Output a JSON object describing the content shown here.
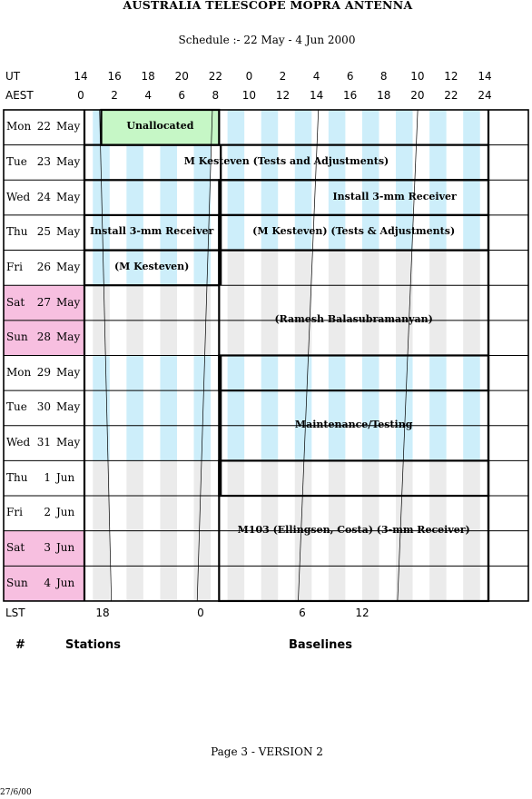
{
  "header": {
    "title": "AUSTRALIA TELESCOPE MOPRA ANTENNA",
    "subtitle": "Schedule :- 22 May - 4 Jun 2000"
  },
  "axes": {
    "ut_label": "UT",
    "aest_label": "AEST",
    "lst_label": "LST",
    "ut_ticks": [
      "14",
      "16",
      "18",
      "20",
      "22",
      "0",
      "2",
      "4",
      "6",
      "8",
      "10",
      "12",
      "14"
    ],
    "aest_ticks": [
      "0",
      "2",
      "4",
      "6",
      "8",
      "10",
      "12",
      "14",
      "16",
      "18",
      "20",
      "22",
      "24"
    ],
    "lst_ticks": [
      "18",
      "0",
      "6",
      "12"
    ]
  },
  "days": [
    {
      "dow": "Mon",
      "day": "22",
      "mon": "May",
      "weekend": false
    },
    {
      "dow": "Tue",
      "day": "23",
      "mon": "May",
      "weekend": false
    },
    {
      "dow": "Wed",
      "day": "24",
      "mon": "May",
      "weekend": false
    },
    {
      "dow": "Thu",
      "day": "25",
      "mon": "May",
      "weekend": false
    },
    {
      "dow": "Fri",
      "day": "26",
      "mon": "May",
      "weekend": false
    },
    {
      "dow": "Sat",
      "day": "27",
      "mon": "May",
      "weekend": true
    },
    {
      "dow": "Sun",
      "day": "28",
      "mon": "May",
      "weekend": true
    },
    {
      "dow": "Mon",
      "day": "29",
      "mon": "May",
      "weekend": false
    },
    {
      "dow": "Tue",
      "day": "30",
      "mon": "May",
      "weekend": false
    },
    {
      "dow": "Wed",
      "day": "31",
      "mon": "May",
      "weekend": false
    },
    {
      "dow": "Thu",
      "day": "1",
      "mon": "Jun",
      "weekend": false
    },
    {
      "dow": "Fri",
      "day": "2",
      "mon": "Jun",
      "weekend": false
    },
    {
      "dow": "Sat",
      "day": "3",
      "mon": "Jun",
      "weekend": true
    },
    {
      "dow": "Sun",
      "day": "4",
      "mon": "Jun",
      "weekend": true
    }
  ],
  "bookings": [
    {
      "label": "Unallocated",
      "row_start": 0,
      "row_end": 0,
      "h_start": 1,
      "h_end": 8,
      "fill": "green"
    },
    {
      "label": "M Kesteven (Tests and Adjustments)",
      "row_start": 1,
      "row_end": 1,
      "h_start": 0,
      "h_end": 24,
      "fill": "none"
    },
    {
      "label": "Install 3-mm Receiver",
      "row_start": 2,
      "row_end": 2,
      "h_start": 8,
      "h_end": 24,
      "fill": "none"
    },
    {
      "label": "Install 3-mm Receiver",
      "row_start": 3,
      "row_end": 3,
      "h_start": 0,
      "h_end": 8,
      "fill": "none"
    },
    {
      "label": "(M Kesteven) (Tests & Adjustments)",
      "row_start": 3,
      "row_end": 3,
      "h_start": 8,
      "h_end": 24,
      "fill": "none"
    },
    {
      "label": "(M Kesteven)",
      "row_start": 4,
      "row_end": 4,
      "h_start": 0,
      "h_end": 8,
      "fill": "none"
    },
    {
      "label": "(Ramesh Balasubramanyan)",
      "row_start": 4,
      "row_end": 7,
      "h_start": 8,
      "h_end": 24,
      "fill": "none"
    },
    {
      "label": "Maintenance/Testing",
      "row_start": 7,
      "row_end": 10,
      "h_start": 8,
      "h_end": 24,
      "fill": "none"
    },
    {
      "label": "M103 (Ellingsen, Costa) (3-mm Receiver)",
      "row_start": 10,
      "row_end": 13,
      "h_start": 8,
      "h_end": 24,
      "fill": "none"
    }
  ],
  "footer": {
    "hash": "#",
    "stations": "Stations",
    "baselines": "Baselines",
    "page": "Page 3 - VERSION 2",
    "date": "27/6/00"
  },
  "colors": {
    "day_stripe": "#cdeefa",
    "night_stripe": "#ebebeb",
    "weekend": "#f7bfe0",
    "unallocated": "#c6f7c6"
  }
}
